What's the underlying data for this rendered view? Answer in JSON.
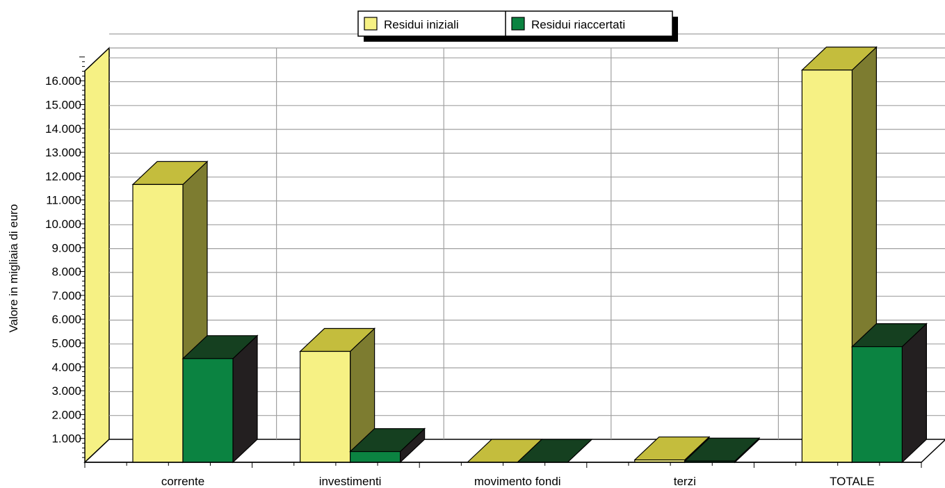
{
  "chart_data": {
    "type": "bar",
    "style": "3d-clustered",
    "ylabel": "Valore in migliaia di euro",
    "xlabel": "",
    "ylim": [
      0,
      17000
    ],
    "y_ticks": [
      "1.000",
      "2.000",
      "3.000",
      "4.000",
      "5.000",
      "6.000",
      "7.000",
      "8.000",
      "9.000",
      "10.000",
      "11.000",
      "12.000",
      "13.000",
      "14.000",
      "15.000",
      "16.000"
    ],
    "grid": true,
    "legend_position": "top-center",
    "categories": [
      "corrente",
      "investimenti",
      "movimento fondi",
      "terzi",
      "TOTALE"
    ],
    "series": [
      {
        "name": "Residui iniziali",
        "values": [
          11650,
          4650,
          0,
          100,
          16450
        ],
        "color": "#f6f184",
        "top_color": "#c4bd3d",
        "side_color": "#7d7c30"
      },
      {
        "name": "Residui riaccertati",
        "values": [
          4350,
          450,
          0,
          50,
          4850
        ],
        "color": "#0b8341",
        "top_color": "#154020",
        "side_color": "#231f20"
      }
    ],
    "wall_color": "#f6f184"
  }
}
